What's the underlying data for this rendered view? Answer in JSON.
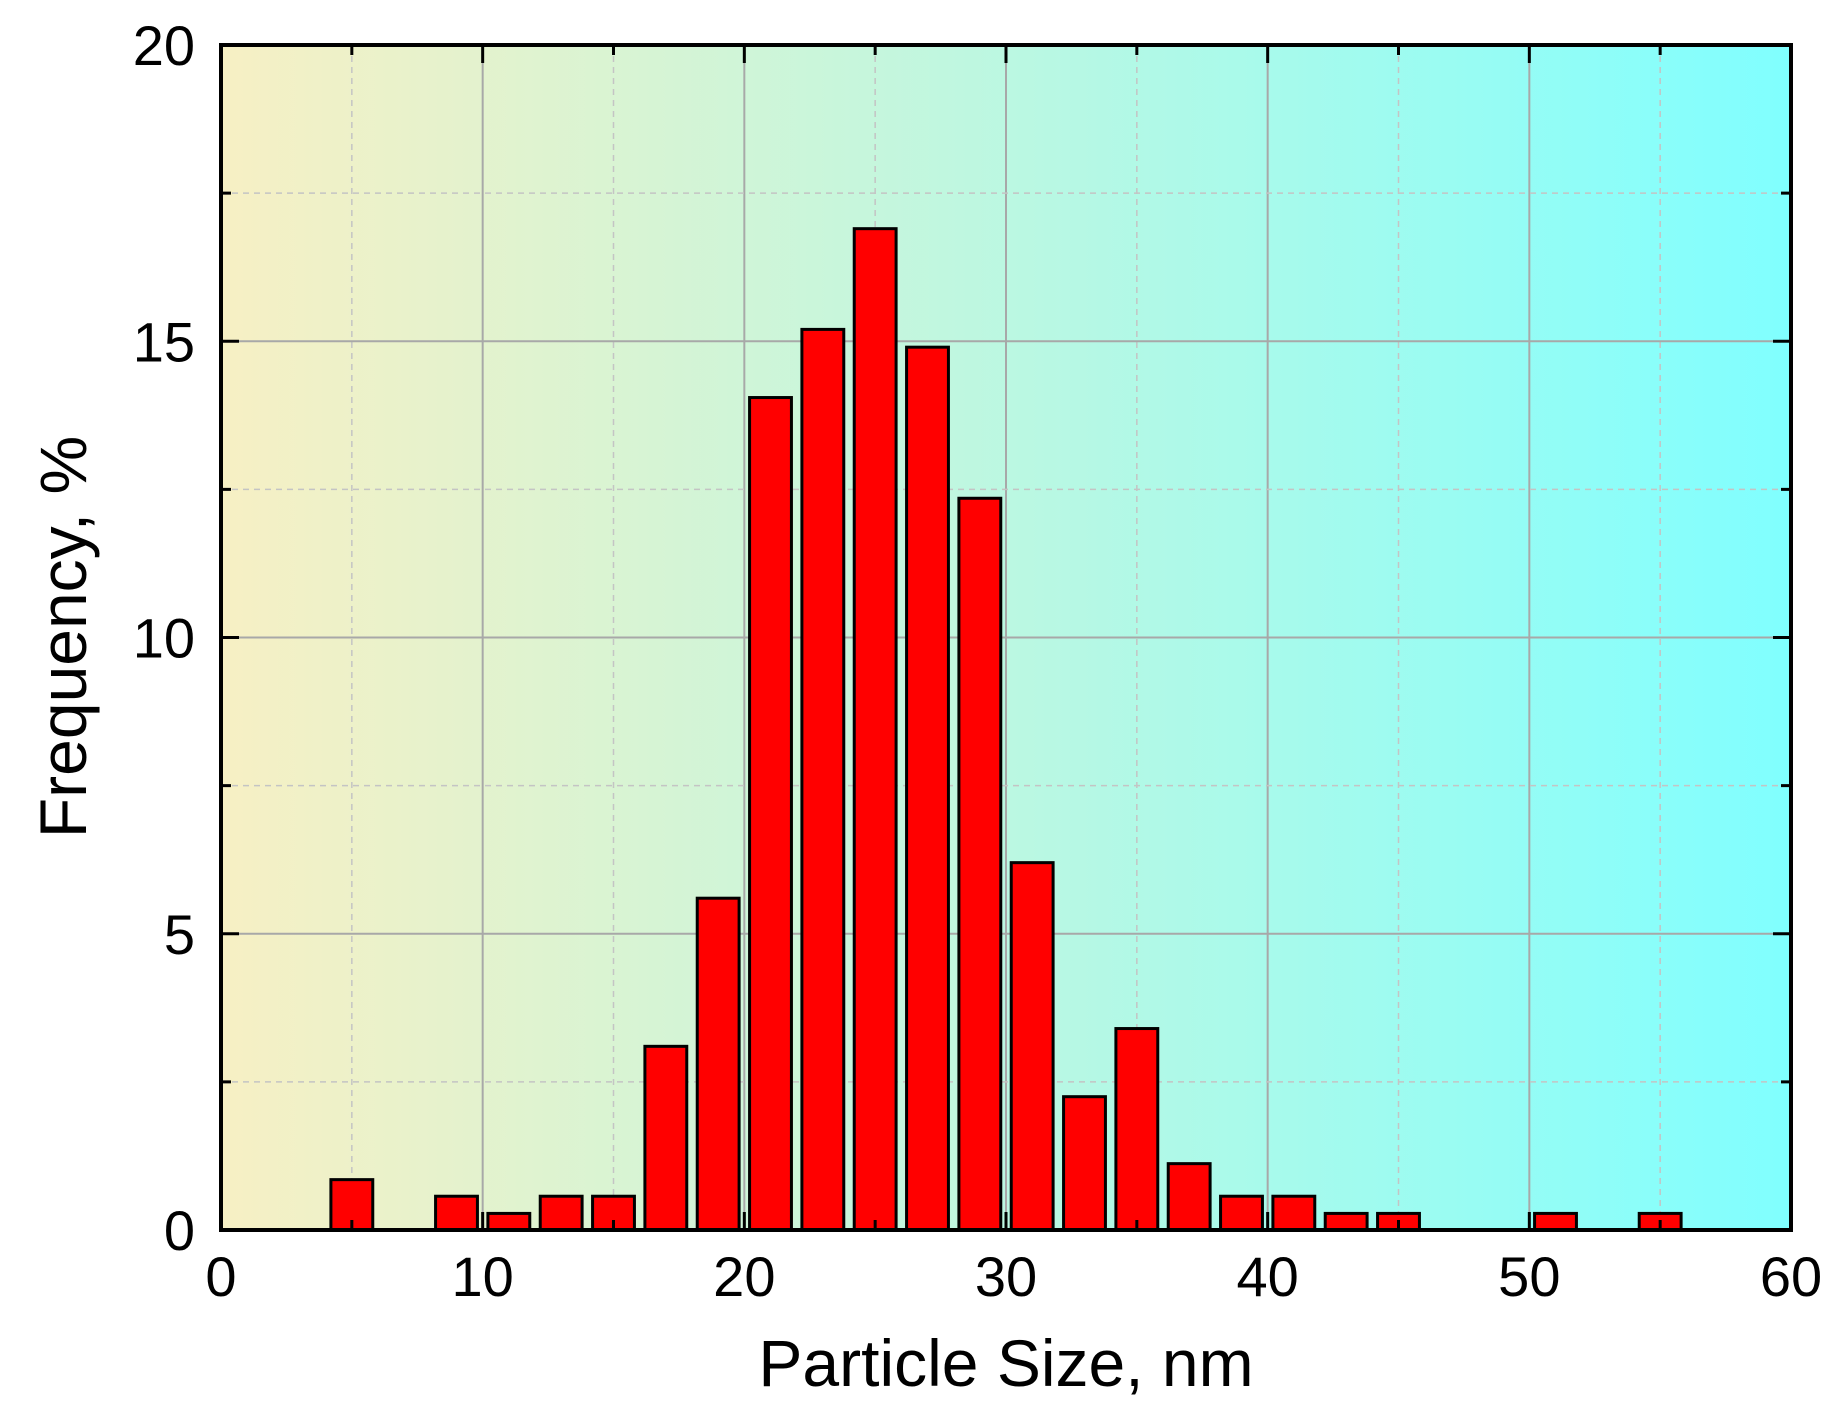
{
  "chart_data": {
    "type": "bar",
    "title": "",
    "xlabel": "Particle Size,  nm",
    "ylabel": "Frequency, %",
    "xlim": [
      0,
      60
    ],
    "ylim": [
      0,
      20
    ],
    "xticks": [
      0,
      10,
      20,
      30,
      40,
      50,
      60
    ],
    "yticks": [
      0,
      5,
      10,
      15,
      20
    ],
    "xtick_labels": [
      "0",
      "10",
      "20",
      "30",
      "40",
      "50",
      "60"
    ],
    "ytick_labels": [
      "0",
      "5",
      "10",
      "15",
      "20"
    ],
    "bin_width": 2,
    "grid": true,
    "legend": "none",
    "bars": [
      {
        "x": 5,
        "value": 0.85
      },
      {
        "x": 9,
        "value": 0.57
      },
      {
        "x": 11,
        "value": 0.28
      },
      {
        "x": 13,
        "value": 0.57
      },
      {
        "x": 15,
        "value": 0.57
      },
      {
        "x": 17,
        "value": 3.1
      },
      {
        "x": 19,
        "value": 5.6
      },
      {
        "x": 21,
        "value": 14.05
      },
      {
        "x": 23,
        "value": 15.2
      },
      {
        "x": 25,
        "value": 16.9
      },
      {
        "x": 27,
        "value": 14.9
      },
      {
        "x": 29,
        "value": 12.35
      },
      {
        "x": 31,
        "value": 6.2
      },
      {
        "x": 33,
        "value": 2.25
      },
      {
        "x": 35,
        "value": 3.4
      },
      {
        "x": 37,
        "value": 1.12
      },
      {
        "x": 39,
        "value": 0.57
      },
      {
        "x": 41,
        "value": 0.57
      },
      {
        "x": 43,
        "value": 0.28
      },
      {
        "x": 45,
        "value": 0.28
      },
      {
        "x": 51,
        "value": 0.28
      },
      {
        "x": 55,
        "value": 0.28
      }
    ]
  },
  "colors": {
    "bar_fill": "#ff0000",
    "bar_stroke": "#000000",
    "background_gradient_start": "#f7f0c4",
    "background_gradient_end": "#80ffff",
    "grid_major": "#a8a8a8",
    "grid_minor": "#c4c4c4"
  }
}
